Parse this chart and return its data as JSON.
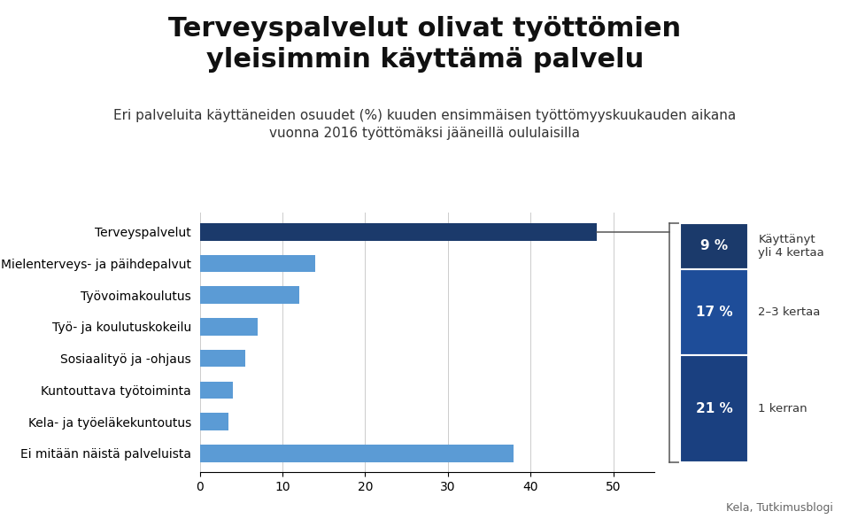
{
  "title": "Terveyspalvelut olivat työttömien\nyleisimmin käyttämä palvelu",
  "subtitle": "Eri palveluita käyttäneiden osuudet (%) kuuden ensimmäisen työttömyyskuukauden aikana\nvuonna 2016 työttömäksi jääneillä oululaisilla",
  "source": "Kela, Tutkimusblogi",
  "categories": [
    "Terveyspalvelut",
    "Mielenterveys- ja päihdepalvut",
    "Työvoimakoulutus",
    "Työ- ja koulutuskokeilu",
    "Sosiaalityö ja -ohjaus",
    "Kuntouttava työtoiminta",
    "Kela- ja työeläkekuntoutus",
    "Ei mitään näistä palveluista"
  ],
  "values": [
    48,
    14,
    12,
    7,
    5.5,
    4,
    3.5,
    38
  ],
  "bar_colors": [
    "#1b3a6b",
    "#5b9bd5",
    "#5b9bd5",
    "#5b9bd5",
    "#5b9bd5",
    "#5b9bd5",
    "#5b9bd5",
    "#5b9bd5"
  ],
  "sidebar_segments": [
    {
      "label": "9 %",
      "sublabel": "Käyttänyt\nyli 4 kertaa",
      "value": 9,
      "color": "#1b3a6b"
    },
    {
      "label": "17 %",
      "sublabel": "2–3 kertaa",
      "value": 17,
      "color": "#1e4d99"
    },
    {
      "label": "21 %",
      "sublabel": "1 kerran",
      "value": 21,
      "color": "#1a4080"
    }
  ],
  "xlim": [
    0,
    55
  ],
  "xticks": [
    0,
    10,
    20,
    30,
    40,
    50
  ],
  "background_color": "#ffffff",
  "title_fontsize": 22,
  "subtitle_fontsize": 11,
  "bar_height": 0.55
}
